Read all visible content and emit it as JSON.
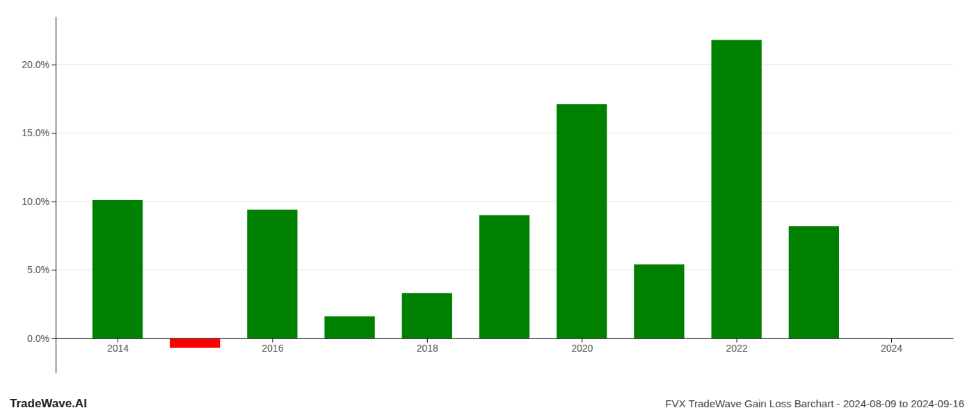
{
  "chart_data": {
    "type": "bar",
    "title": "FVX TradeWave Gain Loss Barchart - 2024-08-09 to 2024-09-16",
    "annotations": [
      "TradeWave.AI"
    ],
    "x": [
      2014,
      2015,
      2016,
      2017,
      2018,
      2019,
      2020,
      2021,
      2022,
      2023
    ],
    "values": [
      0.101,
      -0.007,
      0.094,
      0.016,
      0.033,
      0.09,
      0.171,
      0.054,
      0.218,
      0.082
    ],
    "colors": [
      "#008000",
      "#ff0000",
      "#008000",
      "#008000",
      "#008000",
      "#008000",
      "#008000",
      "#008000",
      "#008000",
      "#008000"
    ],
    "xlim": [
      2013.2,
      2024.8
    ],
    "xticks": [
      2014,
      2016,
      2018,
      2020,
      2022,
      2024
    ],
    "ylim": [
      -0.025,
      0.235
    ],
    "yticks": [
      {
        "value": 0.0,
        "label": "0.0%"
      },
      {
        "value": 0.05,
        "label": "5.0%"
      },
      {
        "value": 0.1,
        "label": "10.0%"
      },
      {
        "value": 0.15,
        "label": "15.0%"
      },
      {
        "value": 0.2,
        "label": "20.0%"
      }
    ],
    "grid": true
  }
}
